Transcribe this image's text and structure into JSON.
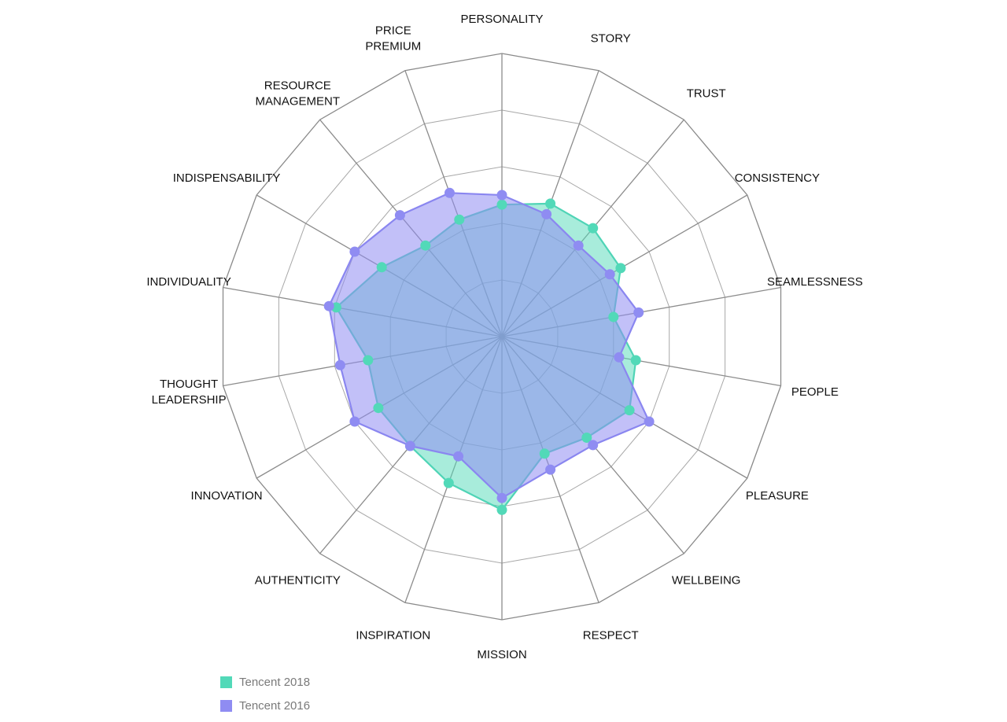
{
  "chart_data": {
    "type": "radar",
    "axes": [
      "PERSONALITY",
      "STORY",
      "TRUST",
      "CONSISTENCY",
      "SEAMLESSNESS",
      "PEOPLE",
      "PLEASURE",
      "WELLBEING",
      "RESPECT",
      "MISSION",
      "INSPIRATION",
      "AUTHENTICITY",
      "INNOVATION",
      "THOUGHT LEADERSHIP",
      "INDIVIDUALITY",
      "INDISPENSABILITY",
      "RESOURCE MANAGEMENT",
      "PRICE PREMIUM"
    ],
    "range": [
      0,
      5
    ],
    "rings": 5,
    "series": [
      {
        "name": "Tencent 2018",
        "color": "#52d9b8",
        "fill": "rgba(82,217,184,0.50)",
        "stroke": "#4fd4b6",
        "values": [
          2.33,
          2.5,
          2.5,
          2.42,
          2.0,
          2.4,
          2.6,
          2.33,
          2.2,
          3.06,
          2.75,
          2.52,
          2.52,
          2.4,
          2.97,
          2.45,
          2.1,
          2.2
        ]
      },
      {
        "name": "Tencent 2016",
        "color": "#8f8cf2",
        "fill": "rgba(143,140,242,0.55)",
        "stroke": "#8a86f0",
        "values": [
          2.5,
          2.3,
          2.1,
          2.2,
          2.45,
          2.1,
          3.0,
          2.5,
          2.5,
          2.85,
          2.25,
          2.52,
          3.0,
          2.9,
          3.1,
          3.0,
          2.8,
          2.7
        ]
      }
    ],
    "grid": true,
    "legend": "bottom-left"
  },
  "labels": {
    "PERSONALITY": [
      "PERSONALITY"
    ],
    "STORY": [
      "STORY"
    ],
    "TRUST": [
      "TRUST"
    ],
    "CONSISTENCY": [
      "CONSISTENCY"
    ],
    "SEAMLESSNESS": [
      "SEAMLESSNESS"
    ],
    "PEOPLE": [
      "PEOPLE"
    ],
    "PLEASURE": [
      "PLEASURE"
    ],
    "WELLBEING": [
      "WELLBEING"
    ],
    "RESPECT": [
      "RESPECT"
    ],
    "MISSION": [
      "MISSION"
    ],
    "INSPIRATION": [
      "INSPIRATION"
    ],
    "AUTHENTICITY": [
      "AUTHENTICITY"
    ],
    "INNOVATION": [
      "INNOVATION"
    ],
    "THOUGHT LEADERSHIP": [
      "THOUGHT",
      "LEADERSHIP"
    ],
    "INDIVIDUALITY": [
      "INDIVIDUALITY"
    ],
    "INDISPENSABILITY": [
      "INDISPENSABILITY"
    ],
    "RESOURCE MANAGEMENT": [
      "RESOURCE",
      "MANAGEMENT"
    ],
    "PRICE PREMIUM": [
      "PRICE",
      "PREMIUM"
    ]
  },
  "legend": {
    "items": [
      {
        "label": "Tencent 2018",
        "color": "#52d9b8"
      },
      {
        "label": "Tencent 2016",
        "color": "#8f8cf2"
      }
    ]
  }
}
